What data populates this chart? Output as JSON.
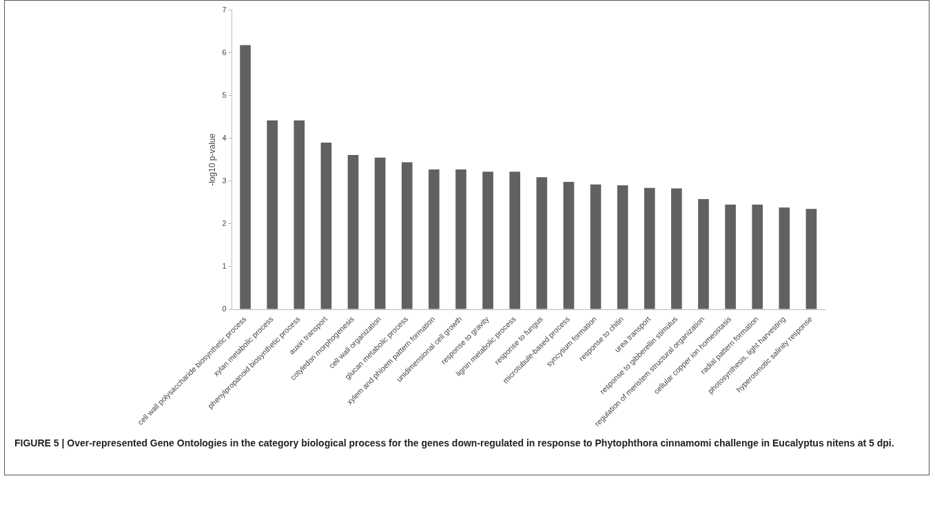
{
  "chart_data": {
    "type": "bar",
    "ylabel": "-log10 p-value",
    "categories": [
      "cell wall polysaccharide biosynthetic process",
      "xylan metabolic process",
      "phenylpropanoid biosynthetic process",
      "auxin transport",
      "cotyledon morphogenesis",
      "cell wall organization",
      "glucan metabolic process",
      "xylem and phloem pattern formation",
      "unidimensional cell growth",
      "response to gravity",
      "lignin metabolic process",
      "response to fungus",
      "microtubule-based process",
      "syncytium formation",
      "response to chitin",
      "urea transport",
      "response to gibberellin stimulus",
      "regulation of meristem structural organization",
      "cellular copper ion homeostasis",
      "radial pattern formation",
      "photosynthesis, light harvesting",
      "hyperosmotic salinity response"
    ],
    "values": [
      6.18,
      4.42,
      4.42,
      3.9,
      3.61,
      3.55,
      3.44,
      3.27,
      3.27,
      3.22,
      3.22,
      3.09,
      2.98,
      2.92,
      2.9,
      2.84,
      2.83,
      2.58,
      2.45,
      2.45,
      2.38,
      2.35
    ],
    "color": "#616161",
    "ylim": [
      0,
      7
    ],
    "yticks": [
      0,
      1,
      2,
      3,
      4,
      5,
      6,
      7
    ],
    "grid": false,
    "legend": false,
    "annotations": [
      "FIGURE 5 | Over-represented Gene Ontologies in the category biological process for the genes down-regulated in response to Phytophthora cinnamomi challenge in Eucalyptus nitens at 5 dpi."
    ]
  }
}
